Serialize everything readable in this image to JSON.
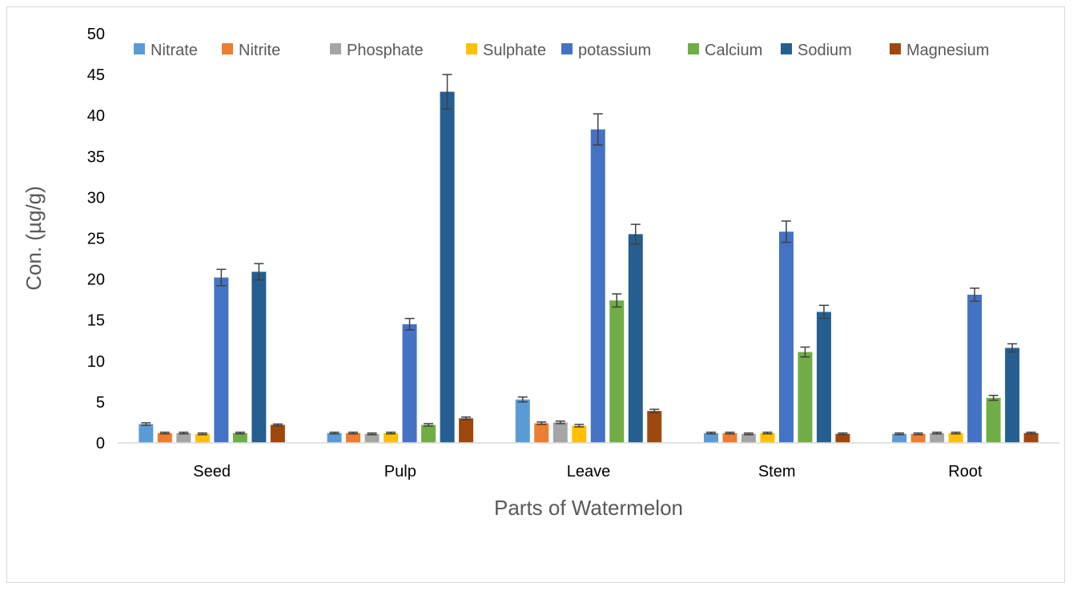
{
  "chart_data": {
    "type": "bar",
    "title": "",
    "xlabel": "Parts of Watermelon",
    "ylabel": "Con. (µg/g)",
    "ylim": [
      0,
      50
    ],
    "yticks": [
      0,
      5,
      10,
      15,
      20,
      25,
      30,
      35,
      40,
      45,
      50
    ],
    "grid": false,
    "legend": "top",
    "error_bars": true,
    "categories": [
      "Seed",
      "Pulp",
      "Leave",
      "Stem",
      "Root"
    ],
    "series": [
      {
        "name": "Nitrate",
        "color": "#5b9bd5",
        "values": [
          2.3,
          1.2,
          5.3,
          1.2,
          1.1
        ],
        "errors": [
          0.15,
          0.1,
          0.3,
          0.1,
          0.1
        ]
      },
      {
        "name": "Nitrite",
        "color": "#ed7d31",
        "values": [
          1.2,
          1.2,
          2.4,
          1.2,
          1.1
        ],
        "errors": [
          0.1,
          0.1,
          0.15,
          0.1,
          0.1
        ]
      },
      {
        "name": "Phosphate",
        "color": "#a5a5a5",
        "values": [
          1.2,
          1.1,
          2.5,
          1.1,
          1.2
        ],
        "errors": [
          0.1,
          0.1,
          0.15,
          0.1,
          0.1
        ]
      },
      {
        "name": "Sulphate",
        "color": "#ffc000",
        "values": [
          1.1,
          1.2,
          2.1,
          1.2,
          1.2
        ],
        "errors": [
          0.1,
          0.1,
          0.15,
          0.1,
          0.1
        ]
      },
      {
        "name": "potassium",
        "color": "#4472c4",
        "values": [
          20.2,
          14.5,
          38.3,
          25.8,
          18.1
        ],
        "errors": [
          1.0,
          0.7,
          1.9,
          1.3,
          0.8
        ]
      },
      {
        "name": "Calcium",
        "color": "#70ad47",
        "values": [
          1.2,
          2.2,
          17.4,
          11.1,
          5.5
        ],
        "errors": [
          0.1,
          0.15,
          0.8,
          0.6,
          0.3
        ]
      },
      {
        "name": "Sodium",
        "color": "#255e91",
        "values": [
          20.9,
          42.9,
          25.5,
          16.0,
          11.6
        ],
        "errors": [
          1.0,
          2.1,
          1.2,
          0.8,
          0.5
        ]
      },
      {
        "name": "Magnesium",
        "color": "#9e480e",
        "values": [
          2.2,
          3.0,
          3.9,
          1.1,
          1.2
        ],
        "errors": [
          0.1,
          0.15,
          0.2,
          0.1,
          0.1
        ]
      }
    ]
  }
}
